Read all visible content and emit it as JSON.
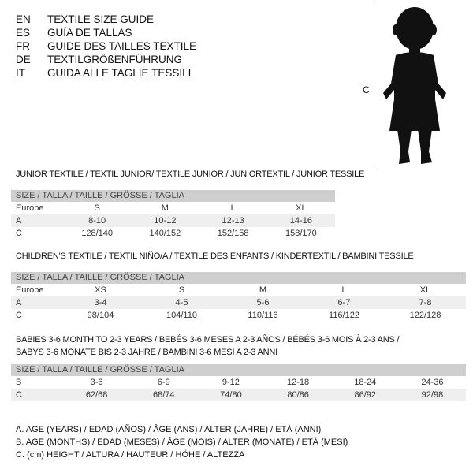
{
  "languages": [
    {
      "code": "EN",
      "title": "TEXTILE SIZE GUIDE"
    },
    {
      "code": "ES",
      "title": "GUÍA DE TALLAS"
    },
    {
      "code": "FR",
      "title": "GUIDE DES TAILLES TEXTILE"
    },
    {
      "code": "DE",
      "title": "TEXTILGRÖßENFÜHRUNG"
    },
    {
      "code": "IT",
      "title": "GUIDA ALLE TAGLIE TESSILI"
    }
  ],
  "figure": {
    "measure_label": "C",
    "icon": "baby-silhouette-icon"
  },
  "tables": [
    {
      "title": [
        "JUNIOR TEXTILE / TEXTIL JUNIOR/ TEXTILE JUNIOR / JUNIORTEXTIL / JUNIOR TESSILE"
      ],
      "header": "SIZE / TALLA / TAILLE / GRÖSSE / TAGLIA",
      "rows": [
        {
          "label": "Europe",
          "values": [
            "S",
            "M",
            "L",
            "XL"
          ]
        },
        {
          "label": "A",
          "values": [
            "8-10",
            "10-12",
            "12-13",
            "14-16"
          ]
        },
        {
          "label": "C",
          "values": [
            "128/140",
            "140/152",
            "152/158",
            "158/170"
          ]
        }
      ]
    },
    {
      "title": [
        "CHILDREN'S TEXTILE / TEXTIL NIÑO/A / TEXTILE DES ENFANTS / KINDERTEXTIL / BAMBINI TESSILE"
      ],
      "header": "SIZE / TALLA / TAILLE / GRÖSSE / TAGLIA",
      "rows": [
        {
          "label": "Europe",
          "values": [
            "XS",
            "S",
            "M",
            "L",
            "XL"
          ]
        },
        {
          "label": "A",
          "values": [
            "3-4",
            "4-5",
            "5-6",
            "6-7",
            "7-8"
          ]
        },
        {
          "label": "C",
          "values": [
            "98/104",
            "104/110",
            "110/116",
            "116/122",
            "122/128"
          ]
        }
      ]
    },
    {
      "title": [
        "BABIES 3-6 MONTH TO 2-3 YEARS / BEBÉS 3-6 MESES A 2-3 AÑOS / BÉBÉS 3-6 MOIS À 2-3 ANS /",
        "BABYS 3-6 MONATE BIS 2-3 JAHRE / BAMBINI 3-6 MESI A 2-3 ANNI"
      ],
      "header": "SIZE / TALLA / TAILLE / GRÖSSE / TAGLIA",
      "rows": [
        {
          "label": "B",
          "values": [
            "3-6",
            "6-9",
            "9-12",
            "12-18",
            "18-24",
            "24-36"
          ]
        },
        {
          "label": "C",
          "values": [
            "62/68",
            "68/74",
            "74/80",
            "80/86",
            "86/92",
            "92/98"
          ]
        }
      ]
    }
  ],
  "notes": [
    "A. AGE (YEARS) / EDAD (AÑOS) / ÂGE (ANS) / ALTER (JAHRE) / ETÀ (ANNI)",
    "B. AGE (MONTHS) / EDAD (MESES) / ÂGE (MOIS) / ALTER (MONATE) / ETÀ (MESI)",
    "C. (cm) HEIGHT / ALTURA / HAUTEUR / HÖHE / ALTEZZA"
  ]
}
